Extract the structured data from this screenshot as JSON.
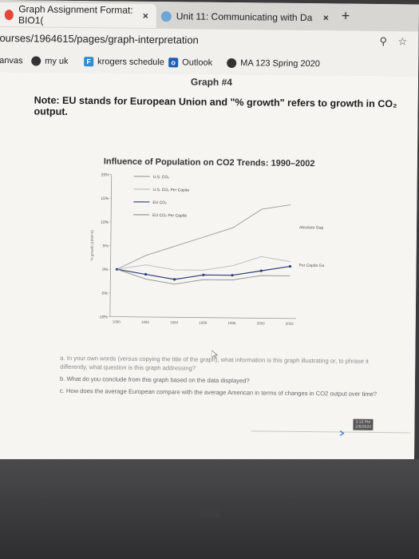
{
  "browser": {
    "tabs": [
      {
        "label": "Graph Assignment Format: BIO1(",
        "close": "×"
      },
      {
        "label": "Unit 11: Communicating with Da",
        "close": "×"
      }
    ],
    "new_tab": "+",
    "url": "ourses/1964615/pages/graph-interpretation",
    "bookmarks": [
      {
        "label": "anvas"
      },
      {
        "label": "my uk"
      },
      {
        "label": "krogers schedule"
      },
      {
        "label": "Outlook"
      },
      {
        "label": "MA 123 Spring 2020"
      }
    ]
  },
  "page": {
    "graph_heading": "Graph #4",
    "note": "Note: EU stands for European Union and \"% growth\" refers to growth in CO₂ output.",
    "questions": [
      "a. In your own words (versus copying the title of the graph), what information is this graph illustrating or, to phrase it differently, what question is this graph addressing?",
      "b. What do you conclude from this graph based on the data displayed?",
      "c. How does the average European compare with the average American in terms of changes in CO2 output over time?"
    ]
  },
  "chart_data": {
    "type": "line",
    "title": "Influence of Population on CO2 Trends: 1990–2002",
    "ylabel": "% growth (1990=0)",
    "xlabel": "",
    "ylim": [
      -10,
      20
    ],
    "yticks": [
      "20%",
      "15%",
      "10%",
      "5%",
      "0%",
      "-5%",
      "-10%"
    ],
    "x": [
      "1990",
      "1992",
      "1994",
      "1996",
      "1998",
      "2000",
      "2002"
    ],
    "series": [
      {
        "name": "U.S. CO₂",
        "color": "#9a9a9a",
        "values": [
          0,
          3,
          5,
          7,
          9,
          13,
          14
        ]
      },
      {
        "name": "U.S. CO₂ Per Capita",
        "color": "#b8b8b8",
        "values": [
          0,
          1,
          0,
          0,
          1,
          3,
          2
        ]
      },
      {
        "name": "EU CO₂",
        "color": "#2a3f7a",
        "values": [
          0,
          -1,
          -2,
          -1,
          -1,
          0,
          1
        ]
      },
      {
        "name": "EU CO₂ Per Capita",
        "color": "#8e8e8e",
        "values": [
          0,
          -2,
          -3,
          -2,
          -2,
          -1,
          -1
        ]
      }
    ],
    "annotations": [
      "Absolute Gap",
      "Per Capita Gap"
    ],
    "legend": "top-center",
    "grid": false
  },
  "taskbar": {
    "time": "3:13 PM",
    "date": "2/6/2020"
  }
}
